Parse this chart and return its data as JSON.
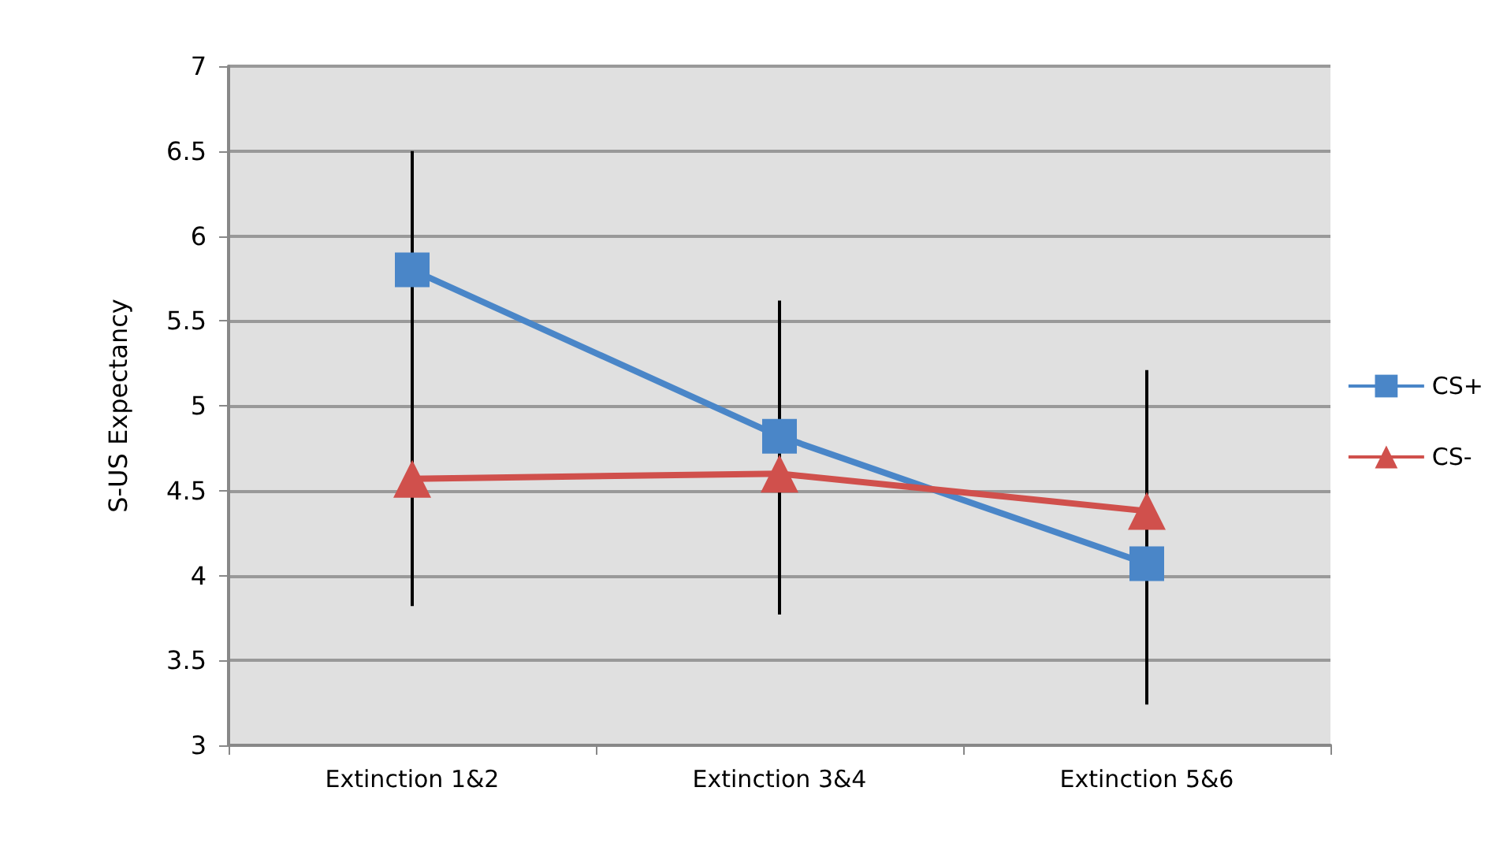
{
  "chart_data": {
    "type": "line",
    "ylabel": "S-US Expectancy",
    "categories": [
      "Extinction 1&2",
      "Extinction 3&4",
      "Extinction 5&6"
    ],
    "series": [
      {
        "name": "CS+",
        "color": "#4a86c8",
        "marker": "square",
        "values": [
          5.8,
          4.82,
          4.07
        ],
        "errors": [
          0.7,
          0.8,
          0.83
        ]
      },
      {
        "name": "CS-",
        "color": "#d0504c",
        "marker": "triangle",
        "values": [
          4.57,
          4.6,
          4.38
        ],
        "errors": [
          0.75,
          0.83,
          0.83
        ]
      }
    ],
    "ylim": [
      3,
      7
    ],
    "yticks": [
      3,
      3.5,
      4,
      4.5,
      5,
      5.5,
      6,
      6.5,
      7
    ],
    "grid": "y",
    "legend": "right"
  }
}
